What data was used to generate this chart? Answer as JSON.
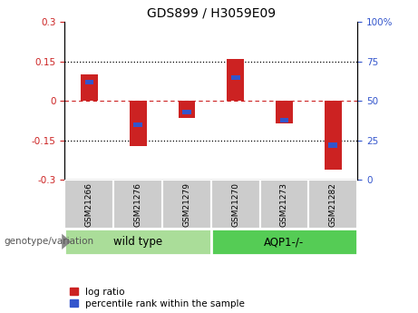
{
  "title": "GDS899 / H3059E09",
  "samples": [
    "GSM21266",
    "GSM21276",
    "GSM21279",
    "GSM21270",
    "GSM21273",
    "GSM21282"
  ],
  "log_ratios": [
    0.1,
    -0.17,
    -0.065,
    0.16,
    -0.085,
    -0.26
  ],
  "percentile_ranks": [
    62,
    35,
    43,
    65,
    38,
    22
  ],
  "groups": [
    {
      "label": "wild type",
      "indices": [
        0,
        1,
        2
      ],
      "color": "#aadd99"
    },
    {
      "label": "AQP1-/-",
      "indices": [
        3,
        4,
        5
      ],
      "color": "#55cc55"
    }
  ],
  "left_ylim": [
    -0.3,
    0.3
  ],
  "right_ylim": [
    0,
    100
  ],
  "left_yticks": [
    -0.3,
    -0.15,
    0,
    0.15,
    0.3
  ],
  "right_yticks": [
    0,
    25,
    50,
    75,
    100
  ],
  "left_yticklabels": [
    "-0.3",
    "-0.15",
    "0",
    "0.15",
    "0.3"
  ],
  "right_yticklabels": [
    "0",
    "25",
    "50",
    "75",
    "100%"
  ],
  "hlines_dotted": [
    -0.15,
    0.15
  ],
  "hline_zero": 0,
  "bar_width": 0.35,
  "blue_bar_width": 0.18,
  "blue_bar_height": 0.018,
  "red_color": "#cc2222",
  "blue_color": "#3355cc",
  "tick_bg_color": "#cccccc",
  "genotype_label": "genotype/variation",
  "legend_items": [
    "log ratio",
    "percentile rank within the sample"
  ]
}
